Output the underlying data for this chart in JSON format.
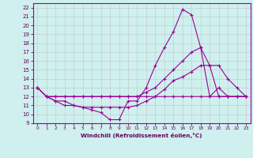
{
  "xlabel": "Windchill (Refroidissement éolien,°C)",
  "bg_color": "#cff0ee",
  "line_color": "#990099",
  "grid_color": "#bbbbbb",
  "xlim": [
    -0.5,
    23.5
  ],
  "ylim": [
    9,
    22.5
  ],
  "xticks": [
    0,
    1,
    2,
    3,
    4,
    5,
    6,
    7,
    8,
    9,
    10,
    11,
    12,
    13,
    14,
    15,
    16,
    17,
    18,
    19,
    20,
    21,
    22,
    23
  ],
  "yticks": [
    9,
    10,
    11,
    12,
    13,
    14,
    15,
    16,
    17,
    18,
    19,
    20,
    21,
    22
  ],
  "series": {
    "x": [
      0,
      1,
      2,
      3,
      4,
      5,
      6,
      7,
      8,
      9,
      10,
      11,
      12,
      13,
      14,
      15,
      16,
      17,
      18,
      19,
      20,
      21,
      22,
      23
    ],
    "line1": [
      13,
      12,
      11.5,
      11.5,
      11.0,
      10.8,
      10.5,
      10.2,
      9.4,
      9.4,
      11.5,
      11.5,
      13.0,
      15.5,
      17.5,
      19.3,
      21.8,
      21.2,
      17.5,
      12.0,
      13.0,
      12.0,
      12.0,
      12.0
    ],
    "line2": [
      13,
      12,
      12.0,
      12.0,
      12.0,
      12.0,
      12.0,
      12.0,
      12.0,
      12.0,
      12.0,
      12.0,
      12.5,
      13.0,
      14.0,
      15.0,
      16.0,
      17.0,
      17.5,
      15.5,
      12.0,
      12.0,
      12.0,
      12.0
    ],
    "line3": [
      13,
      12,
      11.5,
      11.0,
      11.0,
      10.8,
      10.8,
      10.8,
      10.8,
      10.8,
      10.8,
      11.0,
      11.5,
      12.0,
      12.8,
      13.8,
      14.2,
      14.8,
      15.5,
      15.5,
      15.5,
      14.0,
      13.0,
      12.0
    ],
    "line4": [
      13,
      12,
      12.0,
      12.0,
      12.0,
      12.0,
      12.0,
      12.0,
      12.0,
      12.0,
      12.0,
      12.0,
      12.0,
      12.0,
      12.0,
      12.0,
      12.0,
      12.0,
      12.0,
      12.0,
      12.0,
      12.0,
      12.0,
      12.0
    ]
  }
}
